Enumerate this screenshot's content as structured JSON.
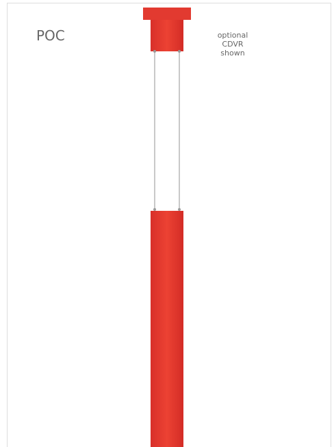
{
  "title": "POC",
  "note": [
    "optional",
    "CDVR",
    "shown"
  ]
}
